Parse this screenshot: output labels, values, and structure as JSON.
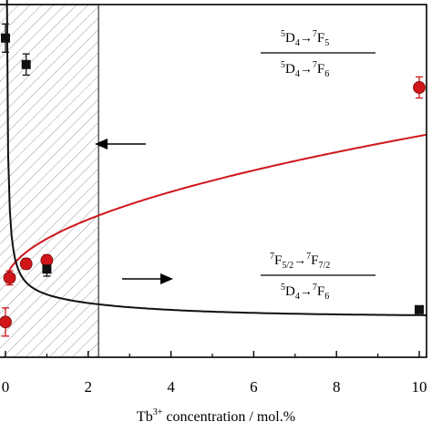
{
  "chart_data": {
    "type": "scatter",
    "xlabel": {
      "base": "Tb",
      "sup": "3+",
      "rest": " concentration / mol.%"
    },
    "xlim": [
      0,
      10
    ],
    "x_ticks": [
      "0",
      "2",
      "4",
      "6",
      "8",
      "10"
    ],
    "ylim": [
      0,
      1
    ],
    "series": [
      {
        "key": "red",
        "color": "#d0161b",
        "marker": "circle",
        "axis": "right",
        "x": [
          0,
          0.1,
          0.5,
          1.0,
          10
        ],
        "y": [
          0.1,
          0.225,
          0.265,
          0.275,
          0.765
        ],
        "err": [
          0.04,
          0.02,
          0.015,
          0.015,
          0.03
        ],
        "fit": "power",
        "label": {
          "num": [
            {
              "sup": "5",
              "base": "D",
              "sub": "4"
            },
            {
              "sup": "7",
              "base": "F",
              "sub": "5"
            }
          ],
          "den": [
            {
              "sup": "5",
              "base": "D",
              "sub": "4"
            },
            {
              "sup": "7",
              "base": "F",
              "sub": "6"
            }
          ]
        }
      },
      {
        "key": "black",
        "color": "#111111",
        "marker": "square",
        "axis": "left",
        "x": [
          0,
          0.5,
          1.0,
          10
        ],
        "y": [
          0.905,
          0.83,
          0.25,
          0.135
        ],
        "err": [
          0.04,
          0.03,
          0.02,
          0.0
        ],
        "fit": "decay",
        "label": {
          "num": [
            {
              "sup": "7",
              "base": "F",
              "sub": "5/2"
            },
            {
              "sup": "7",
              "base": "F",
              "sub": "7/2"
            }
          ],
          "den": [
            {
              "sup": "5",
              "base": "D",
              "sub": "4"
            },
            {
              "sup": "7",
              "base": "F",
              "sub": "6"
            }
          ]
        }
      }
    ],
    "shaded_region_x": [
      0,
      2.25
    ],
    "grid": false
  }
}
